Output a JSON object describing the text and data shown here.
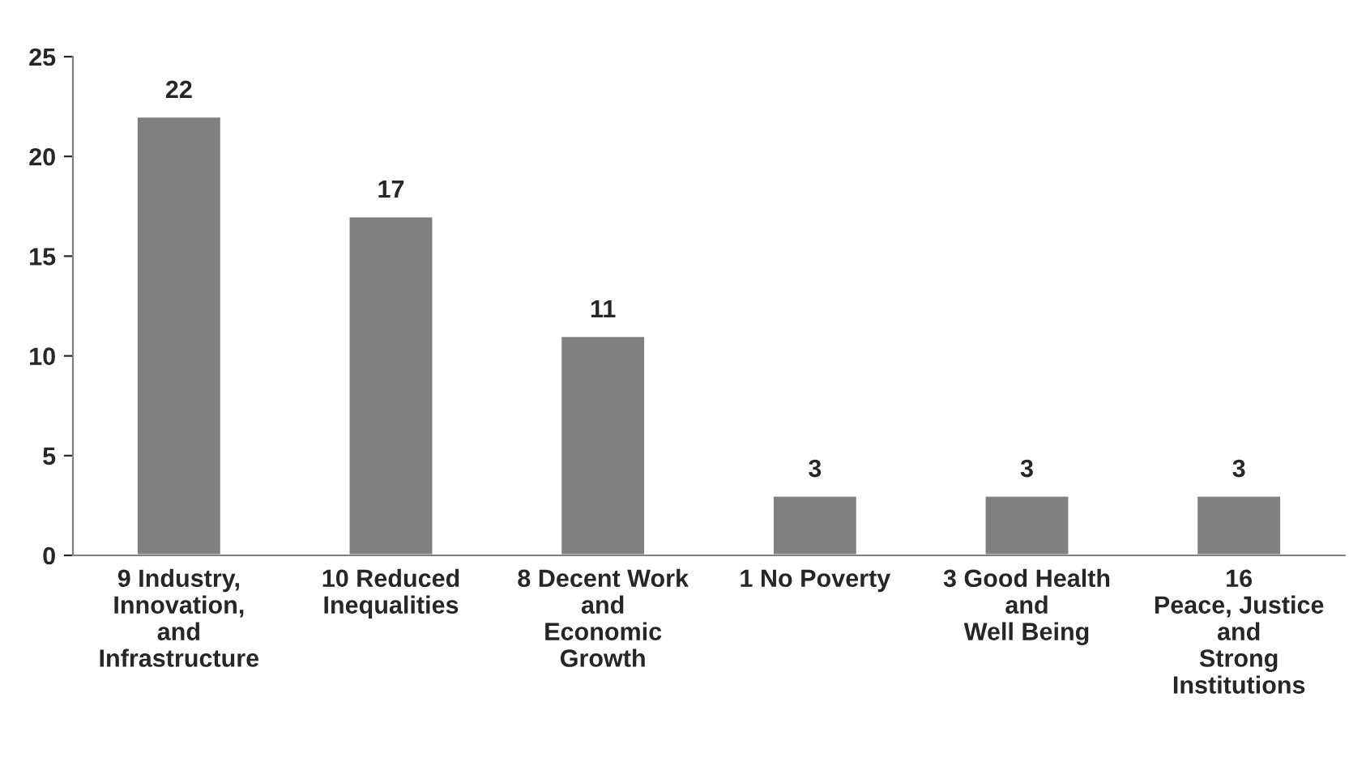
{
  "chart_data": {
    "type": "bar",
    "categories": [
      "9 Industry,\nInnovation,\nand\nInfrastructure",
      "10 Reduced\nInequalities",
      "8 Decent Work\nand\nEconomic\nGrowth",
      "1 No Poverty",
      "3 Good Health\nand\nWell Being",
      "16\nPeace, Justice\nand\nStrong\nInstitutions"
    ],
    "values": [
      22,
      17,
      11,
      3,
      3,
      3
    ],
    "color": "#808080",
    "ylim": [
      0,
      25
    ],
    "yticks": [
      0,
      5,
      10,
      15,
      20,
      25
    ],
    "grid": false,
    "legend": false,
    "data_labels": true
  }
}
